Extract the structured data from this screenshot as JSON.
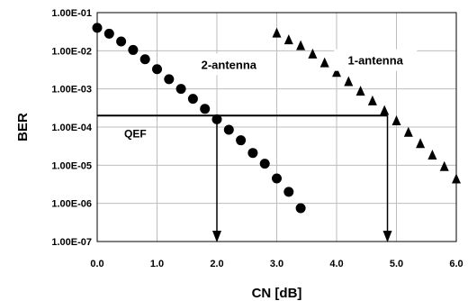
{
  "chart_data": {
    "type": "scatter",
    "xlabel": "CN [dB]",
    "ylabel": "BER",
    "xlim": [
      0,
      6
    ],
    "ylim_log10": [
      -7,
      -1
    ],
    "y_scale": "log",
    "grid": true,
    "x_ticks": [
      "0.0",
      "1.0",
      "2.0",
      "3.0",
      "4.0",
      "5.0",
      "6.0"
    ],
    "y_ticks": [
      "1.00E-07",
      "1.00E-06",
      "1.00E-05",
      "1.00E-04",
      "1.00E-03",
      "1.00E-02",
      "1.00E-01"
    ],
    "series": [
      {
        "name": "2-antenna",
        "marker": "circle",
        "color": "#000000",
        "x": [
          0.0,
          0.2,
          0.4,
          0.6,
          0.8,
          1.0,
          1.2,
          1.4,
          1.6,
          1.8,
          2.0,
          2.2,
          2.4,
          2.6,
          2.8,
          3.0,
          3.2,
          3.4
        ],
        "y": [
          0.04,
          0.028,
          0.0175,
          0.0105,
          0.006,
          0.0033,
          0.0018,
          0.001,
          0.00055,
          0.0003,
          0.00016,
          8.5e-05,
          4.5e-05,
          2.1e-05,
          1.1e-05,
          4.5e-06,
          2e-06,
          7.5e-07
        ]
      },
      {
        "name": "1-antenna",
        "marker": "triangle",
        "color": "#000000",
        "x": [
          3.0,
          3.2,
          3.4,
          3.6,
          3.8,
          4.0,
          4.2,
          4.4,
          4.6,
          4.8,
          5.0,
          5.2,
          5.4,
          5.6,
          5.8,
          6.0
        ],
        "y": [
          0.03,
          0.02,
          0.014,
          0.0085,
          0.005,
          0.0028,
          0.0016,
          0.0009,
          0.0005,
          0.00028,
          0.00015,
          7.5e-05,
          3.8e-05,
          1.9e-05,
          9.5e-06,
          4.5e-06
        ]
      }
    ],
    "threshold": {
      "label": "QEF",
      "y": 0.0002,
      "x_end": 4.85
    },
    "arrows": [
      {
        "x": 2.0,
        "from_y": 0.0002,
        "to_y": 1e-07
      },
      {
        "x": 4.85,
        "from_y": 0.0002,
        "to_y": 1e-07
      }
    ],
    "annotations": [
      {
        "text": "2-antenna",
        "x": 2.2,
        "y": 0.0044
      },
      {
        "text": "1-antenna",
        "x": 4.65,
        "y": 0.0057
      }
    ]
  }
}
